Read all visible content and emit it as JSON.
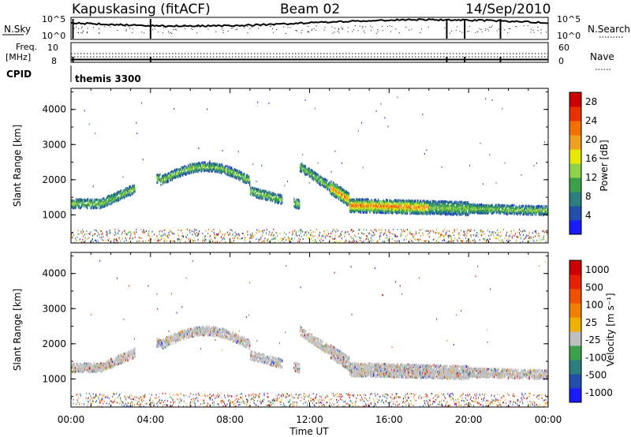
{
  "header": {
    "station": "Kapuskasing (fitACF)",
    "beam": "Beam 02",
    "date": "14/Sep/2010"
  },
  "nsky_panel": {
    "left_label": "N.Sky",
    "left_ticks": [
      "10^5",
      "10^0"
    ],
    "right_label": "N.Search",
    "right_ticks": [
      "10^5",
      "10^0"
    ]
  },
  "freq_panel": {
    "left_label_1": "Freq.",
    "left_label_2": "[MHz]",
    "left_ticks": [
      "10",
      "8"
    ],
    "right_label": "Nave",
    "right_ticks": [
      "60",
      "0"
    ]
  },
  "cpid": {
    "label": "CPID",
    "value": "themis 3300"
  },
  "colors": {
    "power_scale": [
      "#1a1aff",
      "#1f4fa8",
      "#2c7f7f",
      "#3aa04a",
      "#8cd24a",
      "#e8e800",
      "#f0a020",
      "#f07000",
      "#e83000",
      "#cc0000"
    ],
    "velocity_scale": [
      "#1a1aff",
      "#1f4fa8",
      "#2c7f7f",
      "#3aa04a",
      "#bfbfbf",
      "#f0b000",
      "#f08000",
      "#f05000",
      "#e82000",
      "#cc0000"
    ]
  },
  "chart_data": [
    {
      "type": "heatmap",
      "name": "power",
      "ylabel": "Slant Range [km]",
      "yticks": [
        "1000",
        "2000",
        "3000",
        "4000"
      ],
      "ylim": [
        200,
        4600
      ],
      "colorbar_label": "Power [dB]",
      "colorbar_ticks": [
        "28",
        "24",
        "20",
        "16",
        "12",
        "8",
        "4"
      ],
      "colorbar_range": [
        0,
        30
      ]
    },
    {
      "type": "heatmap",
      "name": "velocity",
      "ylabel": "Slant Range [km]",
      "yticks": [
        "1000",
        "2000",
        "3000",
        "4000"
      ],
      "ylim": [
        200,
        4600
      ],
      "colorbar_label": "Velocity [m s⁻¹]",
      "colorbar_ticks": [
        "1000",
        "500",
        "100",
        "25",
        "-25",
        "-100",
        "-500",
        "-1000"
      ]
    }
  ],
  "xaxis": {
    "label": "Time UT",
    "ticks": [
      "00:00",
      "04:00",
      "08:00",
      "12:00",
      "16:00",
      "20:00",
      "00:00"
    ],
    "range_hours": [
      0,
      24
    ]
  }
}
